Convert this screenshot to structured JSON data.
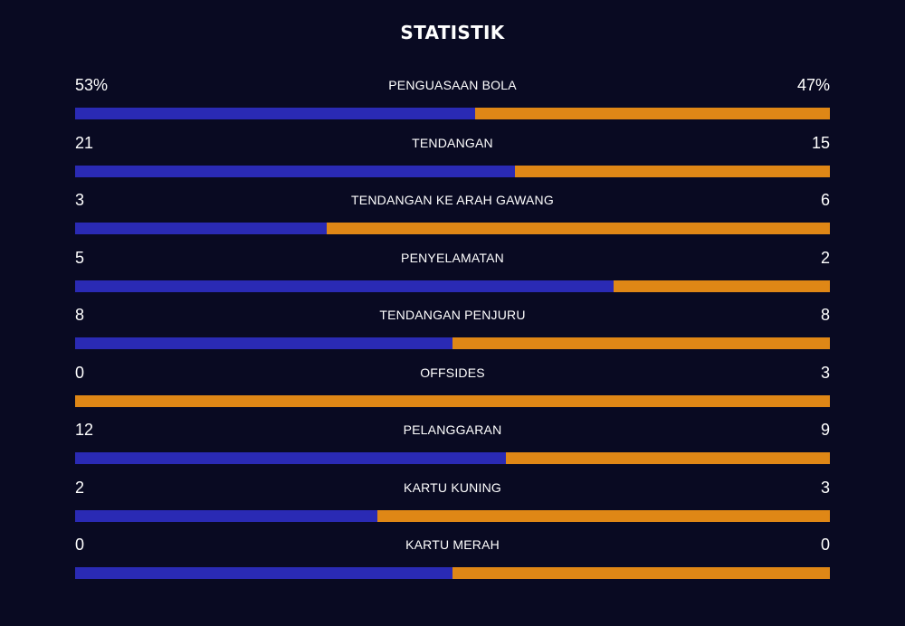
{
  "title": "STATISTIK",
  "colors": {
    "background": "#090a22",
    "home_bar": "#2a2ab4",
    "away_bar": "#df8716",
    "text": "#ffffff"
  },
  "stats": [
    {
      "label": "PENGUASAAN BOLA",
      "home": "53%",
      "away": "47%",
      "home_share": 0.53
    },
    {
      "label": "TENDANGAN",
      "home": "21",
      "away": "15",
      "home_share": 0.583
    },
    {
      "label": "TENDANGAN KE ARAH GAWANG",
      "home": "3",
      "away": "6",
      "home_share": 0.333
    },
    {
      "label": "PENYELAMATAN",
      "home": "5",
      "away": "2",
      "home_share": 0.714
    },
    {
      "label": "TENDANGAN PENJURU",
      "home": "8",
      "away": "8",
      "home_share": 0.5
    },
    {
      "label": "OFFSIDES",
      "home": "0",
      "away": "3",
      "home_share": 0.0
    },
    {
      "label": "PELANGGARAN",
      "home": "12",
      "away": "9",
      "home_share": 0.571
    },
    {
      "label": "KARTU KUNING",
      "home": "2",
      "away": "3",
      "home_share": 0.4
    },
    {
      "label": "KARTU MERAH",
      "home": "0",
      "away": "0",
      "home_share": 0.5
    }
  ]
}
